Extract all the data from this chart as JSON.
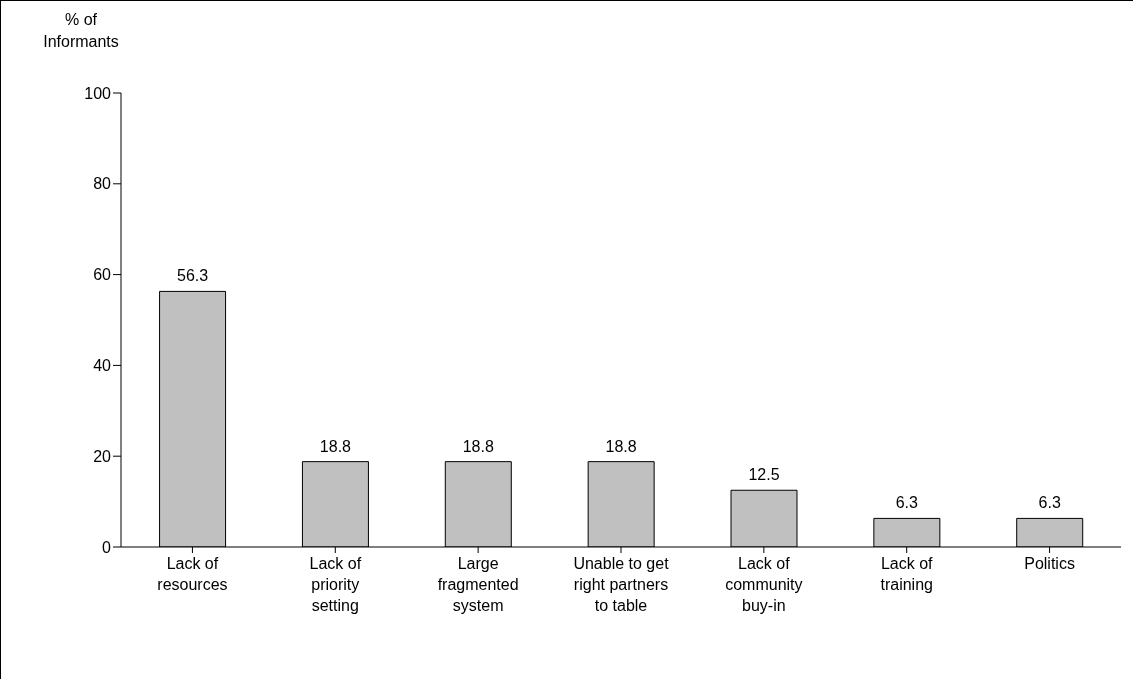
{
  "chart_data": {
    "type": "bar",
    "ylabel": "% of Informants",
    "categories": [
      "Lack of resources",
      "Lack of priority setting",
      "Large fragmented system",
      "Unable to get right partners to table",
      "Lack of community buy-in",
      "Lack of training",
      "Politics"
    ],
    "values": [
      56.3,
      18.8,
      18.8,
      18.8,
      12.5,
      6.3,
      6.3
    ],
    "color": "#c0c0c0",
    "ylim": [
      0,
      100
    ],
    "yticks": [
      0,
      20,
      40,
      60,
      80,
      100
    ],
    "data_labels": true,
    "grid": false,
    "legend": false
  }
}
